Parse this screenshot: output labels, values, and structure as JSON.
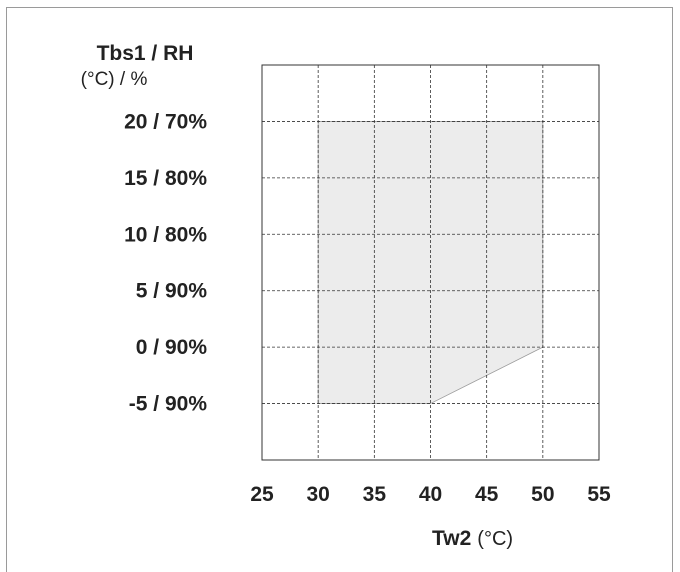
{
  "chart_data": {
    "type": "area",
    "y_axis_title": "Tbs1 / RH",
    "y_axis_unit": "(°C) / %",
    "x_axis_title": "Tw2",
    "x_axis_unit": "(°C)",
    "x_ticks": [
      25,
      30,
      35,
      40,
      45,
      50,
      55
    ],
    "y_ticks": [
      {
        "value": 20,
        "label": "20 / 70%"
      },
      {
        "value": 15,
        "label": "15 / 80%"
      },
      {
        "value": 10,
        "label": "10 / 80%"
      },
      {
        "value": 5,
        "label": "5 / 90%"
      },
      {
        "value": 0,
        "label": "0 / 90%"
      },
      {
        "value": -5,
        "label": "-5 / 90%"
      }
    ],
    "xlim": [
      25,
      55
    ],
    "ylim": [
      -10,
      25
    ],
    "grid": true,
    "operating_region": [
      {
        "x": 30,
        "y": 20
      },
      {
        "x": 50,
        "y": 20
      },
      {
        "x": 50,
        "y": 0
      },
      {
        "x": 40,
        "y": -5
      },
      {
        "x": 30,
        "y": -5
      }
    ],
    "region_fill": "#ececec",
    "region_edge": "#9a9a9a",
    "grid_color": "#333333",
    "axis_color": "#333333"
  }
}
